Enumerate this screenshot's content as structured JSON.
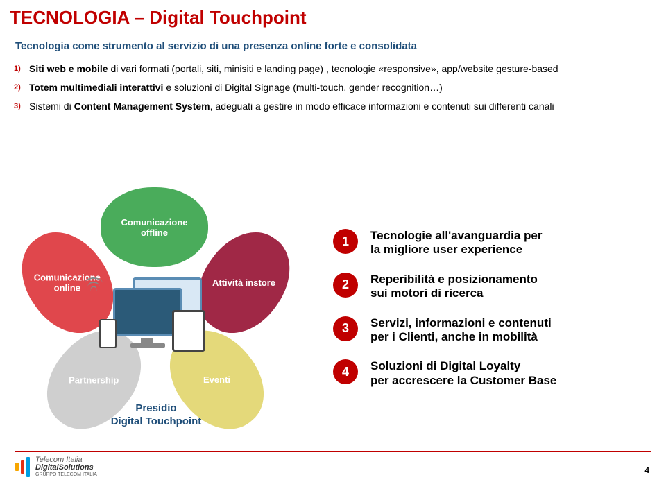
{
  "title": "TECNOLOGIA – Digital Touchpoint",
  "subtitle": "Tecnologia  come strumento al servizio di una presenza online forte e consolidata",
  "main_list": [
    {
      "num": "1)",
      "html": "<b>Siti web e mobile</b> di vari formati (portali, siti, minisiti e landing page) , tecnologie «responsive», app/website gesture-based"
    },
    {
      "num": "2)",
      "html": "<b>Totem multimediali interattivi</b> e soluzioni di Digital  Signage (multi-touch, gender recognition…)"
    },
    {
      "num": "3)",
      "html": "Sistemi di  <b>Content Management System</b>, adeguati a gestire in modo efficace  informazioni e contenuti sui differenti  canali"
    }
  ],
  "petals": {
    "top": "Comunicazione\noffline",
    "left": "Comunicazione\nonline",
    "right": "Attività instore",
    "bl": "Partnership",
    "br": "Eventi"
  },
  "center_label": "Presidio\nDigital Touchpoint",
  "bullets": [
    {
      "n": "1",
      "t": "Tecnologie all'avanguardia per\nla migliore user experience"
    },
    {
      "n": "2",
      "t": "Reperibilità e posizionamento\nsui motori di ricerca"
    },
    {
      "n": "3",
      "t": "Servizi, informazioni e contenuti\nper i Clienti, anche in mobilità"
    },
    {
      "n": "4",
      "t": "Soluzioni di Digital Loyalty\nper accrescere la Customer Base"
    }
  ],
  "footer": {
    "l1": "Telecom Italia",
    "l2": "DigitalSolutions",
    "l3": "GRUPPO TELECOM ITALIA"
  },
  "page_number": "4",
  "colors": {
    "accent_red": "#c00000",
    "subtitle_blue": "#1f4e79",
    "petal_top": "#4aac5b",
    "petal_left": "#e0474c",
    "petal_right": "#a02846",
    "petal_bl": "#cfcfcf",
    "petal_br": "#e4d97a"
  }
}
